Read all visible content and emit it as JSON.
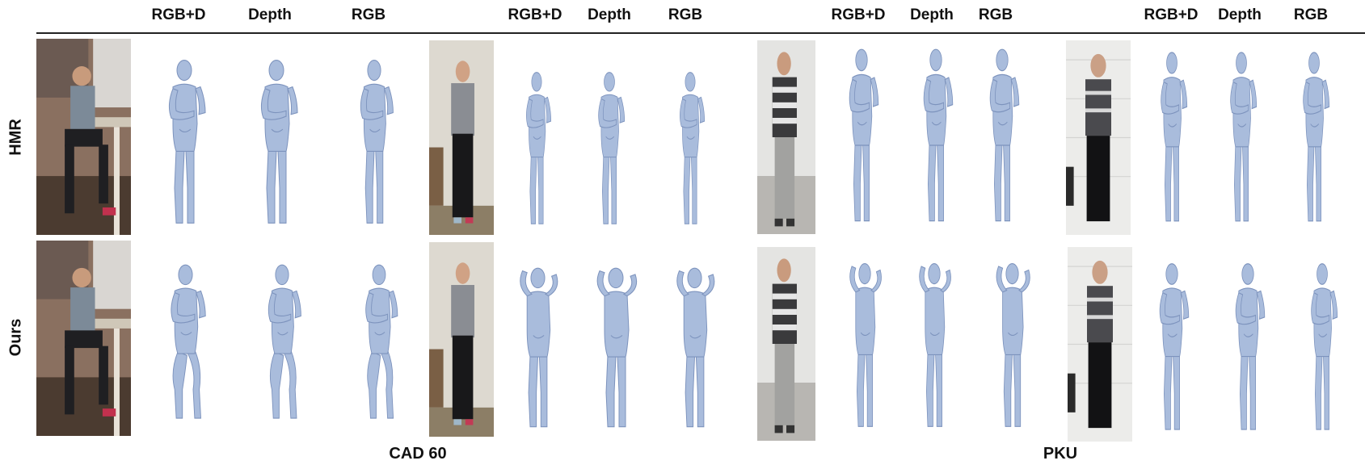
{
  "column_headers": [
    [
      "RGB+D",
      "Depth",
      "RGB"
    ],
    [
      "RGB+D",
      "Depth",
      "RGB"
    ],
    [
      "RGB+D",
      "Depth",
      "RGB"
    ],
    [
      "RGB+D",
      "Depth",
      "RGB"
    ]
  ],
  "row_labels": [
    "HMR",
    "Ours"
  ],
  "dataset_labels": [
    "CAD 60",
    "PKU"
  ],
  "colors": {
    "mesh_fill": "#a9bcdc",
    "mesh_shade": "#7d93bd",
    "rule": "#222222"
  }
}
